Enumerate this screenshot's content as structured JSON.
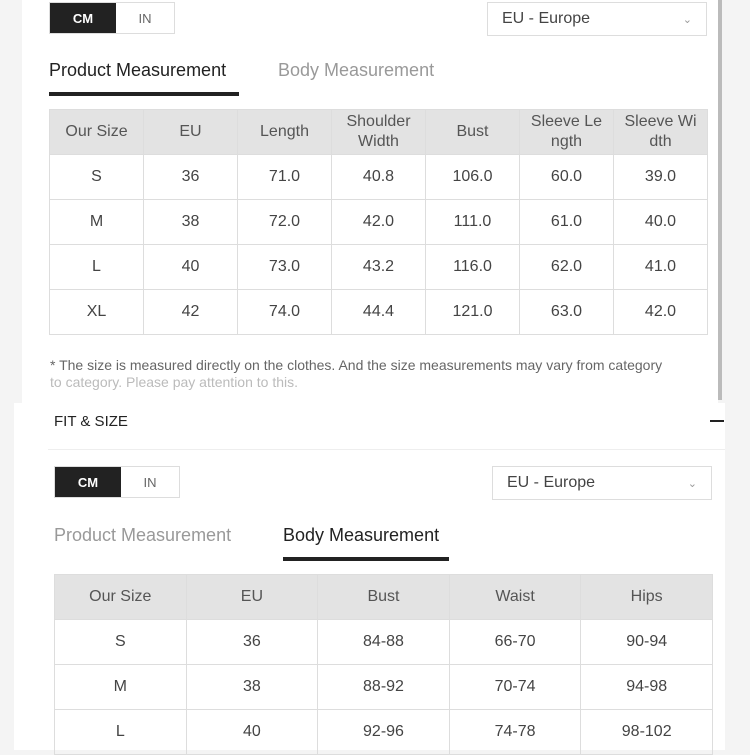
{
  "top": {
    "units": [
      "CM",
      "IN"
    ],
    "region": "EU - Europe",
    "tabs": [
      "Product Measurement",
      "Body Measurement"
    ],
    "active_tab": 0,
    "headers": [
      "Our Size",
      "EU",
      "Length",
      "Shoulder Width",
      "Bust",
      "Sleeve Le ngth",
      "Sleeve Wi dth"
    ],
    "rows": [
      [
        "S",
        "36",
        "71.0",
        "40.8",
        "106.0",
        "60.0",
        "39.0"
      ],
      [
        "M",
        "38",
        "72.0",
        "42.0",
        "111.0",
        "61.0",
        "40.0"
      ],
      [
        "L",
        "40",
        "73.0",
        "43.2",
        "116.0",
        "62.0",
        "41.0"
      ],
      [
        "XL",
        "42",
        "74.0",
        "44.4",
        "121.0",
        "63.0",
        "42.0"
      ]
    ],
    "note_line1": "* The size is measured directly on the clothes. And the size measurements may vary from category",
    "note_line2": "to category. Please pay attention to this."
  },
  "bottom": {
    "section_title": "FIT & SIZE",
    "collapse_icon": "minus-icon",
    "units": [
      "CM",
      "IN"
    ],
    "region": "EU - Europe",
    "tabs": [
      "Product Measurement",
      "Body Measurement"
    ],
    "active_tab": 1,
    "headers": [
      "Our Size",
      "EU",
      "Bust",
      "Waist",
      "Hips"
    ],
    "rows": [
      [
        "S",
        "36",
        "84-88",
        "66-70",
        "90-94"
      ],
      [
        "M",
        "38",
        "88-92",
        "70-74",
        "94-98"
      ],
      [
        "L",
        "40",
        "92-96",
        "74-78",
        "98-102"
      ]
    ]
  }
}
